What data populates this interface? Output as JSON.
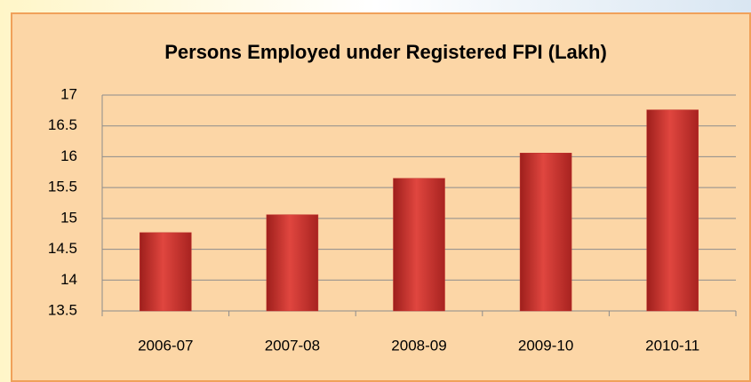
{
  "chart_data": {
    "type": "bar",
    "title": "Persons Employed under Registered FPI (Lakh)",
    "categories": [
      "2006-07",
      "2007-08",
      "2008-09",
      "2009-10",
      "2010-11"
    ],
    "values": [
      14.77,
      15.06,
      15.65,
      16.06,
      16.76
    ],
    "color": "#c0302c",
    "ylim": [
      13.5,
      17
    ],
    "yticks": [
      13.5,
      14,
      14.5,
      15,
      15.5,
      16,
      16.5,
      17
    ],
    "grid": true
  }
}
